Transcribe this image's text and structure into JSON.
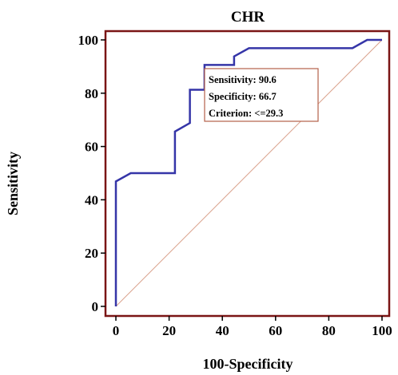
{
  "chart_data": {
    "type": "line",
    "title": "CHR",
    "xlabel": "100-Specificity",
    "ylabel": "Sensitivity",
    "xlim": [
      0,
      100
    ],
    "ylim": [
      0,
      100
    ],
    "xticks": [
      "0",
      "20",
      "40",
      "60",
      "80",
      "100"
    ],
    "yticks": [
      "0",
      "20",
      "40",
      "60",
      "80",
      "100"
    ],
    "grid": false,
    "series": [
      {
        "role": "roc",
        "color": "#3535a8",
        "x": [
          0,
          0,
          5.6,
          22.2,
          22.2,
          27.8,
          27.8,
          33.3,
          33.3,
          44.4,
          44.4,
          50.0,
          88.9,
          94.4,
          100
        ],
        "y": [
          0,
          46.9,
          50.0,
          50.0,
          65.6,
          68.8,
          81.3,
          81.3,
          90.6,
          90.6,
          93.8,
          96.9,
          96.9,
          100,
          100
        ]
      },
      {
        "role": "diagonal",
        "color": "#d9a08a",
        "x": [
          0,
          100
        ],
        "y": [
          0,
          100
        ]
      }
    ],
    "annotation": {
      "lines": [
        "Sensitivity: 90.6",
        "Specificity: 66.7",
        "Criterion: <=29.3"
      ],
      "border_color": "#b5604a"
    },
    "frame_color": "#7a1515"
  }
}
